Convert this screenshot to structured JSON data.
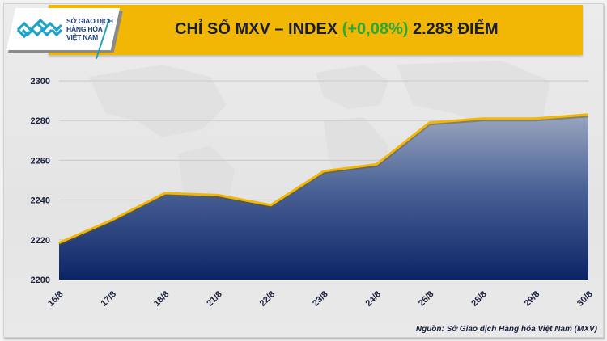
{
  "header": {
    "logo": {
      "icon": "mxv-diamond-logo-icon",
      "lines": [
        "SỞ GIAO DỊCH",
        "HÀNG HÓA",
        "VIỆT NAM"
      ]
    },
    "title_main": "CHỈ SỐ MXV – INDEX ",
    "title_change": "(+0,08%)",
    "title_value": " 2.283 ĐIỂM"
  },
  "footer": {
    "source": "Nguồn: Sở Giao dịch Hàng hóa Việt Nam (MXV)"
  },
  "colors": {
    "banner": "#f2b705",
    "title_text": "#1a1f3d",
    "change_positive": "#2aa839",
    "line": "#f2b705",
    "area_top": "#9aa6c0",
    "area_bottom": "#0c2466",
    "background": "#e8e8e8"
  },
  "chart_data": {
    "type": "area",
    "title": "CHỈ SỐ MXV – INDEX (+0,08%) 2.283 ĐIỂM",
    "xlabel": "",
    "ylabel": "",
    "categories": [
      "16/8",
      "17/8",
      "18/8",
      "21/8",
      "22/8",
      "23/8",
      "24/8",
      "25/8",
      "28/8",
      "29/8",
      "30/8"
    ],
    "series": [
      {
        "name": "MXV-Index",
        "values": [
          2218.5,
          2230,
          2243.5,
          2242.5,
          2237.5,
          2254.5,
          2258,
          2279,
          2281,
          2281,
          2283
        ]
      }
    ],
    "yticks": [
      2200,
      2220,
      2240,
      2260,
      2280,
      2300
    ],
    "ylim": [
      2200,
      2300
    ],
    "grid": true,
    "legend": "none",
    "x_label_rotation": -45,
    "source": "Nguồn: Sở Giao dịch Hàng hóa Việt Nam (MXV)"
  }
}
